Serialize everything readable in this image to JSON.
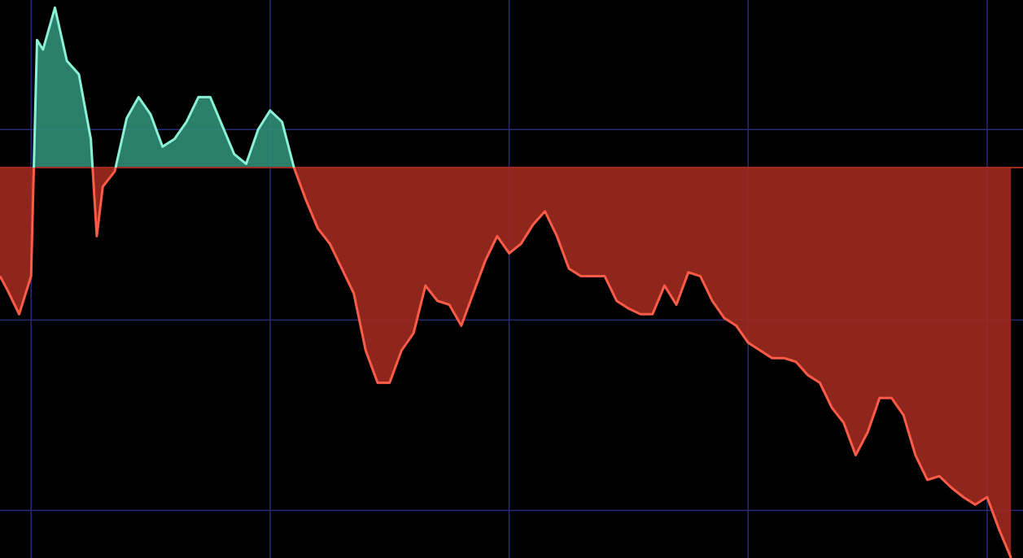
{
  "chart_data": {
    "type": "line",
    "x": [
      -1.3,
      -1,
      -0.5,
      0,
      0.25,
      0.5,
      1,
      1.5,
      2,
      2.5,
      2.75,
      3,
      3.5,
      4,
      4.5,
      5,
      5.5,
      6,
      6.5,
      7,
      7.5,
      8,
      8.5,
      9,
      9.5,
      10,
      10.5,
      11,
      11.5,
      12,
      12.5,
      13,
      13.5,
      14,
      14.5,
      15,
      15.5,
      16,
      16.5,
      17,
      17.5,
      18,
      18.5,
      19,
      19.5,
      20,
      20.5,
      21,
      21.5,
      22,
      22.5,
      23,
      23.5,
      24,
      24.5,
      25,
      25.5,
      26,
      26.5,
      27,
      27.5,
      28,
      28.5,
      29,
      29.5,
      30,
      30.5,
      31,
      31.5,
      32,
      32.5,
      33,
      33.5,
      34,
      34.5,
      35,
      35.5,
      36,
      36.5,
      37,
      37.5,
      38,
      38.5,
      39,
      39.5,
      40,
      40.5,
      41
    ],
    "values": [
      0.23,
      0.16,
      0.03,
      0.23,
      1.47,
      1.42,
      1.64,
      1.36,
      1.29,
      0.95,
      0.44,
      0.7,
      0.78,
      1.06,
      1.17,
      1.08,
      0.91,
      0.95,
      1.04,
      1.17,
      1.17,
      1.02,
      0.87,
      0.82,
      1.0,
      1.1,
      1.04,
      0.8,
      0.63,
      0.48,
      0.4,
      0.27,
      0.14,
      -0.16,
      -0.33,
      -0.33,
      -0.16,
      -0.07,
      0.18,
      0.1,
      0.08,
      -0.03,
      0.14,
      0.31,
      0.44,
      0.35,
      0.4,
      0.5,
      0.57,
      0.44,
      0.27,
      0.23,
      0.23,
      0.23,
      0.1,
      0.06,
      0.03,
      0.03,
      0.18,
      0.08,
      0.25,
      0.23,
      0.1,
      0.01,
      -0.03,
      -0.12,
      -0.16,
      -0.2,
      -0.2,
      -0.22,
      -0.29,
      -0.33,
      -0.46,
      -0.54,
      -0.71,
      -0.59,
      -0.41,
      -0.41,
      -0.5,
      -0.71,
      -0.84,
      -0.82,
      -0.88,
      -0.93,
      -0.97,
      -0.93,
      -1.1,
      -1.25
    ],
    "baseline": 0.8,
    "colors": {
      "above_line": "#8af0d6",
      "above_fill": "#2f8c76",
      "below_line": "#ff5b47",
      "below_fill": "#9e2a20"
    },
    "xlim": [
      -1.3,
      41.5
    ],
    "xticks": [
      0,
      10,
      20,
      30,
      40
    ],
    "ylim": [
      -1.25,
      1.68
    ],
    "yticks": [
      -1,
      0,
      1
    ],
    "grid": true,
    "grid_color": "#2a2a78",
    "background": "#000000"
  }
}
